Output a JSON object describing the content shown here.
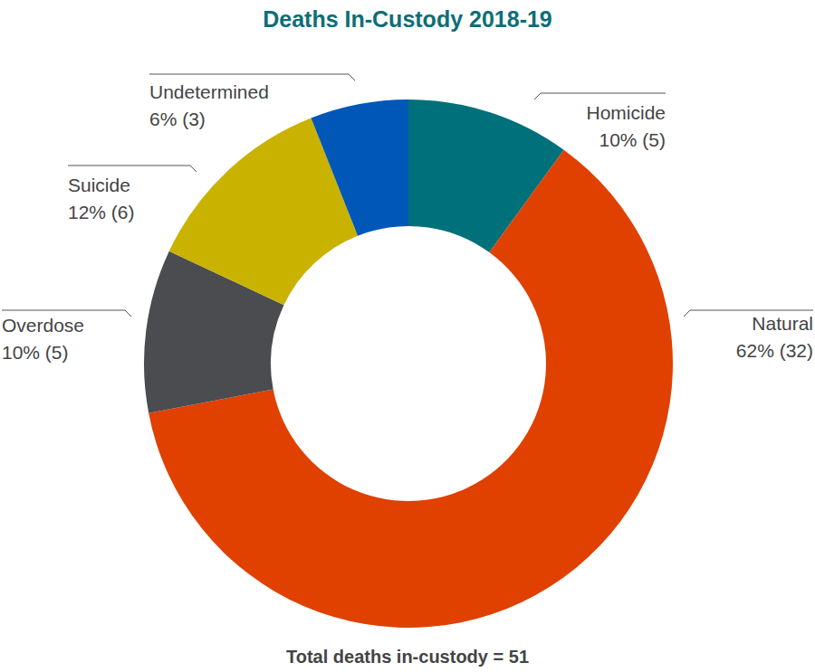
{
  "chart_data": {
    "type": "pie",
    "title": "Deaths In-Custody 2018-19",
    "categories": [
      "Homicide",
      "Natural",
      "Overdose",
      "Suicide",
      "Undetermined"
    ],
    "values": [
      10,
      62,
      10,
      12,
      6
    ],
    "value_labels": [
      "10% (5)",
      "62% (32)",
      "10% (5)",
      "12% (6)",
      "6% (3)"
    ],
    "colors": [
      "#00707a",
      "#e04000",
      "#4b4c50",
      "#c9b200",
      "#0057b8"
    ],
    "data_labels": true,
    "annotations": [
      "Total deaths in-custody = 51"
    ]
  }
}
